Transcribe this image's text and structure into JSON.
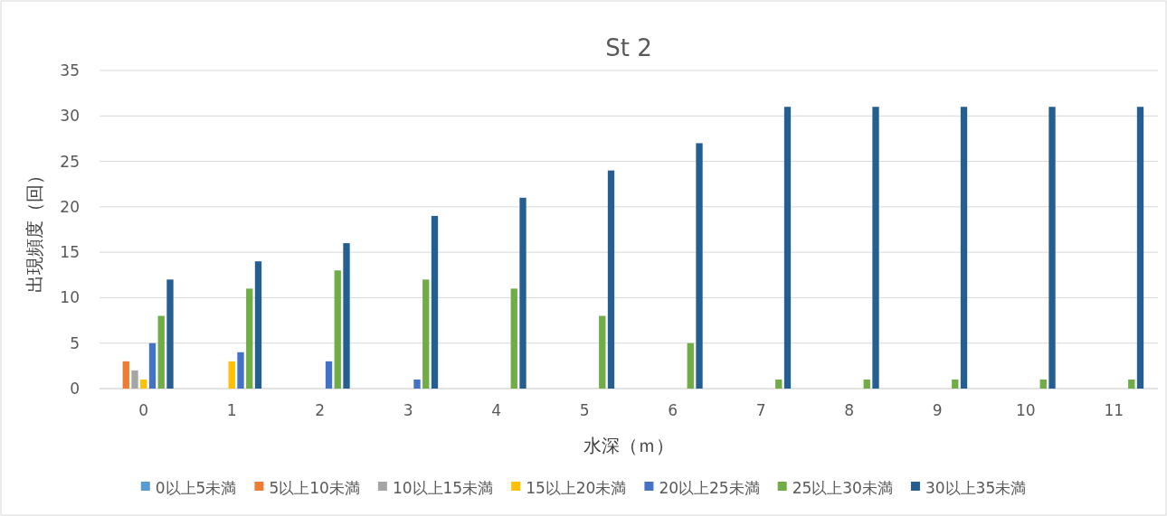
{
  "chart_data": {
    "type": "bar",
    "title": "St 2",
    "xlabel": "水深（ｍ）",
    "ylabel": "出現頻度（回）",
    "categories": [
      "0",
      "1",
      "2",
      "3",
      "4",
      "5",
      "6",
      "7",
      "8",
      "9",
      "10",
      "11"
    ],
    "series": [
      {
        "name": "0以上5未満",
        "color": "#5b9bd5",
        "values": [
          0,
          0,
          0,
          0,
          0,
          0,
          0,
          0,
          0,
          0,
          0,
          0
        ]
      },
      {
        "name": "5以上10未満",
        "color": "#ed7d31",
        "values": [
          3,
          0,
          0,
          0,
          0,
          0,
          0,
          0,
          0,
          0,
          0,
          0
        ]
      },
      {
        "name": "10以上15未満",
        "color": "#a5a5a5",
        "values": [
          2,
          0,
          0,
          0,
          0,
          0,
          0,
          0,
          0,
          0,
          0,
          0
        ]
      },
      {
        "name": "15以上20未満",
        "color": "#ffc000",
        "values": [
          1,
          3,
          0,
          0,
          0,
          0,
          0,
          0,
          0,
          0,
          0,
          0
        ]
      },
      {
        "name": "20以上25未満",
        "color": "#4472c4",
        "values": [
          5,
          4,
          3,
          1,
          0,
          0,
          0,
          0,
          0,
          0,
          0,
          0
        ]
      },
      {
        "name": "25以上30未満",
        "color": "#70ad47",
        "values": [
          8,
          11,
          13,
          12,
          11,
          8,
          5,
          1,
          1,
          1,
          1,
          1
        ]
      },
      {
        "name": "30以上35未満",
        "color": "#255e91",
        "values": [
          12,
          14,
          16,
          19,
          21,
          24,
          27,
          31,
          31,
          31,
          31,
          31
        ]
      }
    ],
    "ylim": [
      0,
      35
    ],
    "yticks": [
      0,
      5,
      10,
      15,
      20,
      25,
      30,
      35
    ],
    "grid": "y",
    "legend": "bottom"
  }
}
